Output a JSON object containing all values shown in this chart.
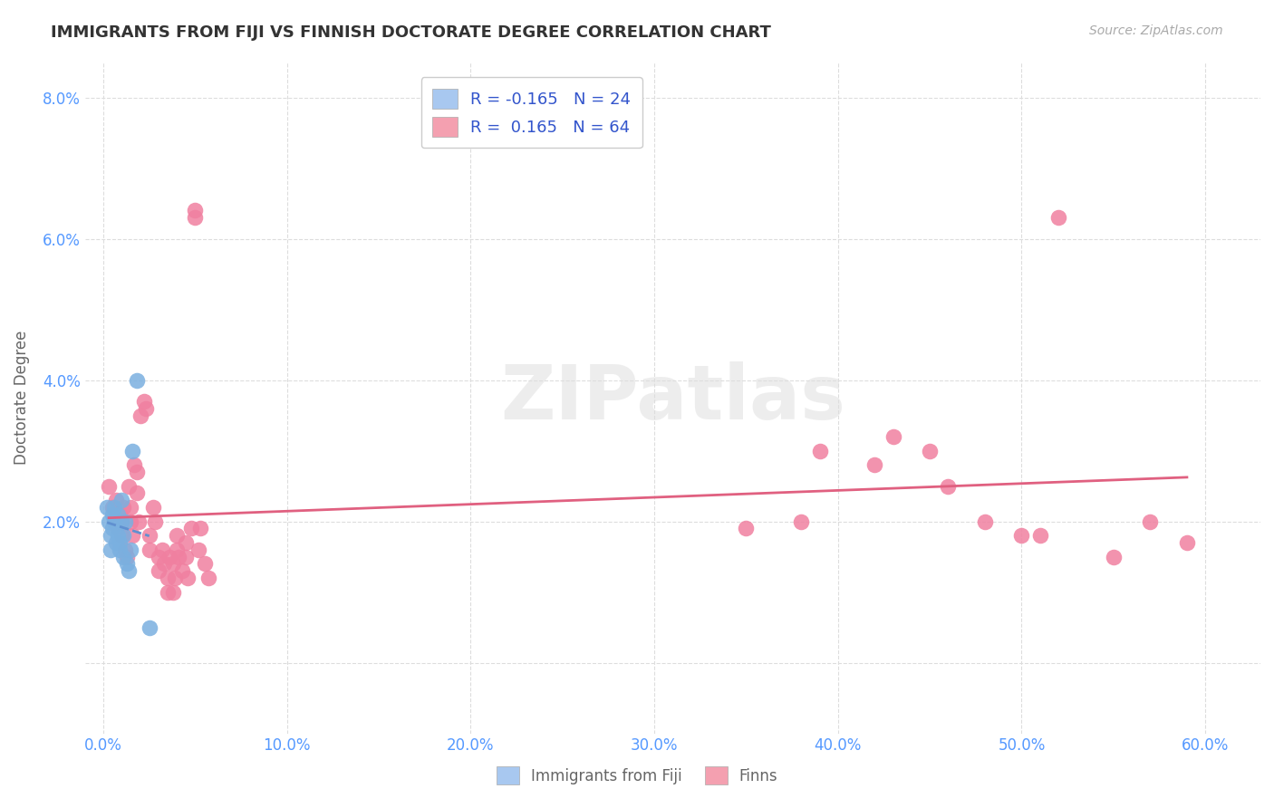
{
  "title": "IMMIGRANTS FROM FIJI VS FINNISH DOCTORATE DEGREE CORRELATION CHART",
  "source": "Source: ZipAtlas.com",
  "xlabel": "",
  "ylabel": "Doctorate Degree",
  "x_ticks": [
    0.0,
    0.1,
    0.2,
    0.3,
    0.4,
    0.5,
    0.6
  ],
  "x_tick_labels": [
    "0.0%",
    "10.0%",
    "20.0%",
    "30.0%",
    "40.0%",
    "50.0%",
    "60.0%"
  ],
  "y_ticks": [
    0.0,
    0.02,
    0.04,
    0.06,
    0.08
  ],
  "y_tick_labels": [
    "",
    "2.0%",
    "4.0%",
    "6.0%",
    "8.0%"
  ],
  "xlim": [
    -0.01,
    0.63
  ],
  "ylim": [
    -0.01,
    0.085
  ],
  "fiji_color": "#a8c8f0",
  "finn_color": "#f4a0b0",
  "fiji_scatter_color": "#7ab0e0",
  "finn_scatter_color": "#f080a0",
  "fiji_line_color": "#6090d0",
  "finn_line_color": "#e06080",
  "legend_fiji_color": "#a8c8f0",
  "legend_finn_color": "#f4a0b0",
  "R_fiji": -0.165,
  "N_fiji": 24,
  "R_finn": 0.165,
  "N_finn": 64,
  "background_color": "#ffffff",
  "grid_color": "#dddddd",
  "title_color": "#333333",
  "axis_label_color": "#5599ff",
  "watermark": "ZIPatlas",
  "fiji_points_x": [
    0.002,
    0.003,
    0.004,
    0.004,
    0.005,
    0.005,
    0.006,
    0.006,
    0.007,
    0.008,
    0.008,
    0.009,
    0.009,
    0.01,
    0.01,
    0.011,
    0.011,
    0.012,
    0.013,
    0.014,
    0.015,
    0.016,
    0.018,
    0.025
  ],
  "fiji_points_y": [
    0.022,
    0.02,
    0.018,
    0.016,
    0.021,
    0.019,
    0.022,
    0.02,
    0.017,
    0.021,
    0.018,
    0.017,
    0.016,
    0.023,
    0.02,
    0.018,
    0.015,
    0.02,
    0.014,
    0.013,
    0.016,
    0.03,
    0.04,
    0.005
  ],
  "finn_points_x": [
    0.003,
    0.005,
    0.006,
    0.007,
    0.008,
    0.009,
    0.01,
    0.01,
    0.011,
    0.012,
    0.013,
    0.014,
    0.015,
    0.015,
    0.016,
    0.017,
    0.018,
    0.018,
    0.019,
    0.02,
    0.022,
    0.023,
    0.025,
    0.025,
    0.027,
    0.028,
    0.03,
    0.03,
    0.032,
    0.033,
    0.035,
    0.035,
    0.036,
    0.038,
    0.038,
    0.039,
    0.04,
    0.04,
    0.041,
    0.043,
    0.045,
    0.045,
    0.046,
    0.048,
    0.05,
    0.05,
    0.052,
    0.053,
    0.055,
    0.057,
    0.35,
    0.38,
    0.39,
    0.42,
    0.43,
    0.45,
    0.46,
    0.48,
    0.5,
    0.51,
    0.52,
    0.55,
    0.57,
    0.59
  ],
  "finn_points_y": [
    0.025,
    0.022,
    0.02,
    0.023,
    0.019,
    0.021,
    0.018,
    0.02,
    0.022,
    0.016,
    0.015,
    0.025,
    0.02,
    0.022,
    0.018,
    0.028,
    0.027,
    0.024,
    0.02,
    0.035,
    0.037,
    0.036,
    0.018,
    0.016,
    0.022,
    0.02,
    0.015,
    0.013,
    0.016,
    0.014,
    0.01,
    0.012,
    0.015,
    0.01,
    0.014,
    0.012,
    0.016,
    0.018,
    0.015,
    0.013,
    0.017,
    0.015,
    0.012,
    0.019,
    0.063,
    0.064,
    0.016,
    0.019,
    0.014,
    0.012,
    0.019,
    0.02,
    0.03,
    0.028,
    0.032,
    0.03,
    0.025,
    0.02,
    0.018,
    0.018,
    0.063,
    0.015,
    0.02,
    0.017
  ]
}
